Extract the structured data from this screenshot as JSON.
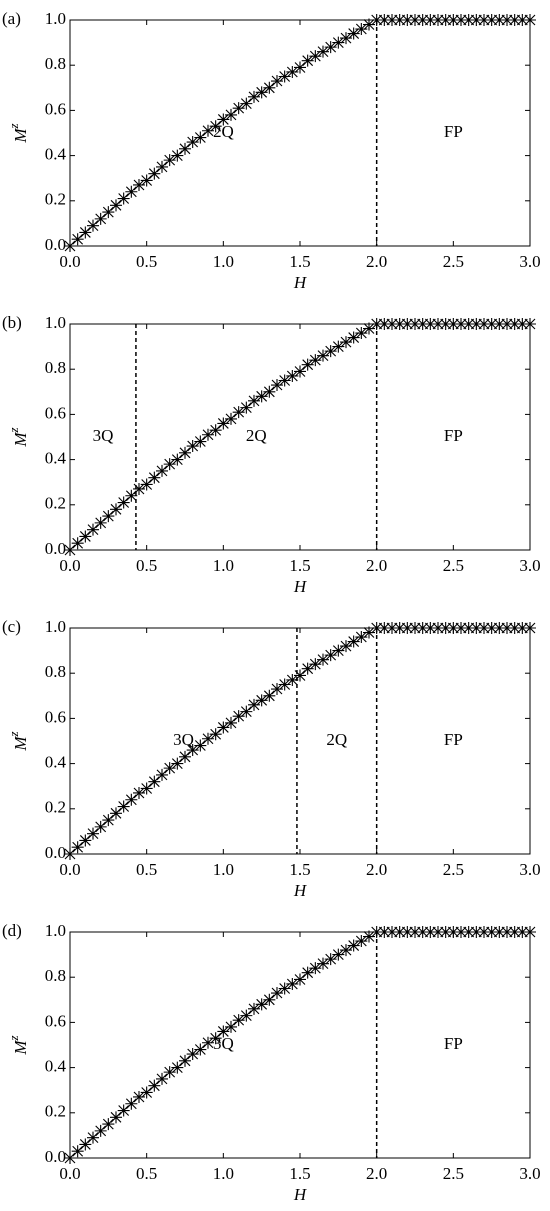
{
  "chart_data": [
    {
      "type": "scatter",
      "panel_label": "(a)",
      "xlabel": "H",
      "ylabel": "M",
      "ylabel_superscript": "z",
      "x": [
        0,
        0.05,
        0.1,
        0.15,
        0.2,
        0.25,
        0.3,
        0.35,
        0.4,
        0.45,
        0.5,
        0.55,
        0.6,
        0.65,
        0.7,
        0.75,
        0.8,
        0.85,
        0.9,
        0.95,
        1.0,
        1.05,
        1.1,
        1.15,
        1.2,
        1.25,
        1.3,
        1.35,
        1.4,
        1.45,
        1.5,
        1.55,
        1.6,
        1.65,
        1.7,
        1.75,
        1.8,
        1.85,
        1.9,
        1.95,
        2.0,
        2.05,
        2.1,
        2.15,
        2.2,
        2.25,
        2.3,
        2.35,
        2.4,
        2.45,
        2.5,
        2.55,
        2.6,
        2.65,
        2.7,
        2.75,
        2.8,
        2.85,
        2.9,
        2.95,
        3.0
      ],
      "values": [
        0,
        0.03,
        0.06,
        0.09,
        0.12,
        0.15,
        0.18,
        0.21,
        0.24,
        0.27,
        0.29,
        0.32,
        0.35,
        0.38,
        0.4,
        0.43,
        0.46,
        0.48,
        0.51,
        0.53,
        0.56,
        0.58,
        0.61,
        0.63,
        0.66,
        0.68,
        0.7,
        0.73,
        0.75,
        0.77,
        0.79,
        0.82,
        0.84,
        0.86,
        0.88,
        0.9,
        0.92,
        0.94,
        0.96,
        0.98,
        1.0,
        1.0,
        1.0,
        1.0,
        1.0,
        1.0,
        1.0,
        1.0,
        1.0,
        1.0,
        1.0,
        1.0,
        1.0,
        1.0,
        1.0,
        1.0,
        1.0,
        1.0,
        1.0,
        1.0,
        1.0
      ],
      "color": "#000000",
      "vlines": [
        2.0
      ],
      "region_labels": [
        "2Q",
        "FP"
      ],
      "xlim": [
        0,
        3
      ],
      "ylim": [
        0,
        1
      ],
      "xticks": [
        {
          "value": 0,
          "label": "0.0"
        },
        0.5,
        {
          "value": 1,
          "label": "1.0"
        },
        1.5,
        {
          "value": 2,
          "label": "2.0"
        },
        2.5,
        {
          "value": 3,
          "label": "3.0"
        }
      ],
      "yticks": [
        {
          "value": 0,
          "label": "0.0"
        },
        0.2,
        0.4,
        0.6,
        0.8,
        {
          "value": 1,
          "label": "1.0"
        }
      ]
    },
    {
      "type": "scatter",
      "panel_label": "(b)",
      "xlabel": "H",
      "ylabel": "M",
      "ylabel_superscript": "z",
      "x": [
        0,
        0.05,
        0.1,
        0.15,
        0.2,
        0.25,
        0.3,
        0.35,
        0.4,
        0.45,
        0.5,
        0.55,
        0.6,
        0.65,
        0.7,
        0.75,
        0.8,
        0.85,
        0.9,
        0.95,
        1.0,
        1.05,
        1.1,
        1.15,
        1.2,
        1.25,
        1.3,
        1.35,
        1.4,
        1.45,
        1.5,
        1.55,
        1.6,
        1.65,
        1.7,
        1.75,
        1.8,
        1.85,
        1.9,
        1.95,
        2.0,
        2.05,
        2.1,
        2.15,
        2.2,
        2.25,
        2.3,
        2.35,
        2.4,
        2.45,
        2.5,
        2.55,
        2.6,
        2.65,
        2.7,
        2.75,
        2.8,
        2.85,
        2.9,
        2.95,
        3.0
      ],
      "values": [
        0,
        0.03,
        0.06,
        0.09,
        0.12,
        0.15,
        0.18,
        0.21,
        0.24,
        0.27,
        0.29,
        0.32,
        0.35,
        0.38,
        0.4,
        0.43,
        0.46,
        0.48,
        0.51,
        0.53,
        0.56,
        0.58,
        0.61,
        0.63,
        0.66,
        0.68,
        0.7,
        0.73,
        0.75,
        0.77,
        0.79,
        0.82,
        0.84,
        0.86,
        0.88,
        0.9,
        0.92,
        0.94,
        0.96,
        0.98,
        1.0,
        1.0,
        1.0,
        1.0,
        1.0,
        1.0,
        1.0,
        1.0,
        1.0,
        1.0,
        1.0,
        1.0,
        1.0,
        1.0,
        1.0,
        1.0,
        1.0,
        1.0,
        1.0,
        1.0,
        1.0
      ],
      "color": "#000000",
      "vlines": [
        0.43,
        2.0
      ],
      "region_labels": [
        "3Q",
        "2Q",
        "FP"
      ],
      "xlim": [
        0,
        3
      ],
      "ylim": [
        0,
        1
      ],
      "xticks": [
        {
          "value": 0,
          "label": "0.0"
        },
        0.5,
        {
          "value": 1,
          "label": "1.0"
        },
        1.5,
        {
          "value": 2,
          "label": "2.0"
        },
        2.5,
        {
          "value": 3,
          "label": "3.0"
        }
      ],
      "yticks": [
        {
          "value": 0,
          "label": "0.0"
        },
        0.2,
        0.4,
        0.6,
        0.8,
        {
          "value": 1,
          "label": "1.0"
        }
      ]
    },
    {
      "type": "scatter",
      "panel_label": "(c)",
      "xlabel": "H",
      "ylabel": "M",
      "ylabel_superscript": "z",
      "x": [
        0,
        0.05,
        0.1,
        0.15,
        0.2,
        0.25,
        0.3,
        0.35,
        0.4,
        0.45,
        0.5,
        0.55,
        0.6,
        0.65,
        0.7,
        0.75,
        0.8,
        0.85,
        0.9,
        0.95,
        1.0,
        1.05,
        1.1,
        1.15,
        1.2,
        1.25,
        1.3,
        1.35,
        1.4,
        1.45,
        1.5,
        1.55,
        1.6,
        1.65,
        1.7,
        1.75,
        1.8,
        1.85,
        1.9,
        1.95,
        2.0,
        2.05,
        2.1,
        2.15,
        2.2,
        2.25,
        2.3,
        2.35,
        2.4,
        2.45,
        2.5,
        2.55,
        2.6,
        2.65,
        2.7,
        2.75,
        2.8,
        2.85,
        2.9,
        2.95,
        3.0
      ],
      "values": [
        0,
        0.03,
        0.06,
        0.09,
        0.12,
        0.15,
        0.18,
        0.21,
        0.24,
        0.27,
        0.29,
        0.32,
        0.35,
        0.38,
        0.4,
        0.43,
        0.46,
        0.48,
        0.51,
        0.53,
        0.56,
        0.58,
        0.61,
        0.63,
        0.66,
        0.68,
        0.7,
        0.73,
        0.75,
        0.77,
        0.79,
        0.82,
        0.84,
        0.86,
        0.88,
        0.9,
        0.92,
        0.94,
        0.96,
        0.98,
        1.0,
        1.0,
        1.0,
        1.0,
        1.0,
        1.0,
        1.0,
        1.0,
        1.0,
        1.0,
        1.0,
        1.0,
        1.0,
        1.0,
        1.0,
        1.0,
        1.0,
        1.0,
        1.0,
        1.0,
        1.0
      ],
      "color": "#000000",
      "vlines": [
        1.48,
        2.0
      ],
      "region_labels": [
        "3Q",
        "2Q",
        "FP"
      ],
      "xlim": [
        0,
        3
      ],
      "ylim": [
        0,
        1
      ],
      "xticks": [
        {
          "value": 0,
          "label": "0.0"
        },
        0.5,
        {
          "value": 1,
          "label": "1.0"
        },
        1.5,
        {
          "value": 2,
          "label": "2.0"
        },
        2.5,
        {
          "value": 3,
          "label": "3.0"
        }
      ],
      "yticks": [
        {
          "value": 0,
          "label": "0.0"
        },
        0.2,
        0.4,
        0.6,
        0.8,
        {
          "value": 1,
          "label": "1.0"
        }
      ]
    },
    {
      "type": "scatter",
      "panel_label": "(d)",
      "xlabel": "H",
      "ylabel": "M",
      "ylabel_superscript": "z",
      "x": [
        0,
        0.05,
        0.1,
        0.15,
        0.2,
        0.25,
        0.3,
        0.35,
        0.4,
        0.45,
        0.5,
        0.55,
        0.6,
        0.65,
        0.7,
        0.75,
        0.8,
        0.85,
        0.9,
        0.95,
        1.0,
        1.05,
        1.1,
        1.15,
        1.2,
        1.25,
        1.3,
        1.35,
        1.4,
        1.45,
        1.5,
        1.55,
        1.6,
        1.65,
        1.7,
        1.75,
        1.8,
        1.85,
        1.9,
        1.95,
        2.0,
        2.05,
        2.1,
        2.15,
        2.2,
        2.25,
        2.3,
        2.35,
        2.4,
        2.45,
        2.5,
        2.55,
        2.6,
        2.65,
        2.7,
        2.75,
        2.8,
        2.85,
        2.9,
        2.95,
        3.0
      ],
      "values": [
        0,
        0.03,
        0.06,
        0.09,
        0.12,
        0.15,
        0.18,
        0.21,
        0.24,
        0.27,
        0.29,
        0.32,
        0.35,
        0.38,
        0.4,
        0.43,
        0.46,
        0.48,
        0.51,
        0.53,
        0.56,
        0.58,
        0.61,
        0.63,
        0.66,
        0.68,
        0.7,
        0.73,
        0.75,
        0.77,
        0.79,
        0.82,
        0.84,
        0.86,
        0.88,
        0.9,
        0.92,
        0.94,
        0.96,
        0.98,
        1.0,
        1.0,
        1.0,
        1.0,
        1.0,
        1.0,
        1.0,
        1.0,
        1.0,
        1.0,
        1.0,
        1.0,
        1.0,
        1.0,
        1.0,
        1.0,
        1.0,
        1.0,
        1.0,
        1.0,
        1.0
      ],
      "color": "#000000",
      "vlines": [
        2.0
      ],
      "region_labels": [
        "3Q",
        "FP"
      ],
      "xlim": [
        0,
        3
      ],
      "ylim": [
        0,
        1
      ],
      "xticks": [
        {
          "value": 0,
          "label": "0.0"
        },
        0.5,
        {
          "value": 1,
          "label": "1.0"
        },
        1.5,
        {
          "value": 2,
          "label": "2.0"
        },
        2.5,
        {
          "value": 3,
          "label": "3.0"
        }
      ],
      "yticks": [
        {
          "value": 0,
          "label": "0.0"
        },
        0.2,
        0.4,
        0.6,
        0.8,
        {
          "value": 1,
          "label": "1.0"
        }
      ]
    }
  ]
}
